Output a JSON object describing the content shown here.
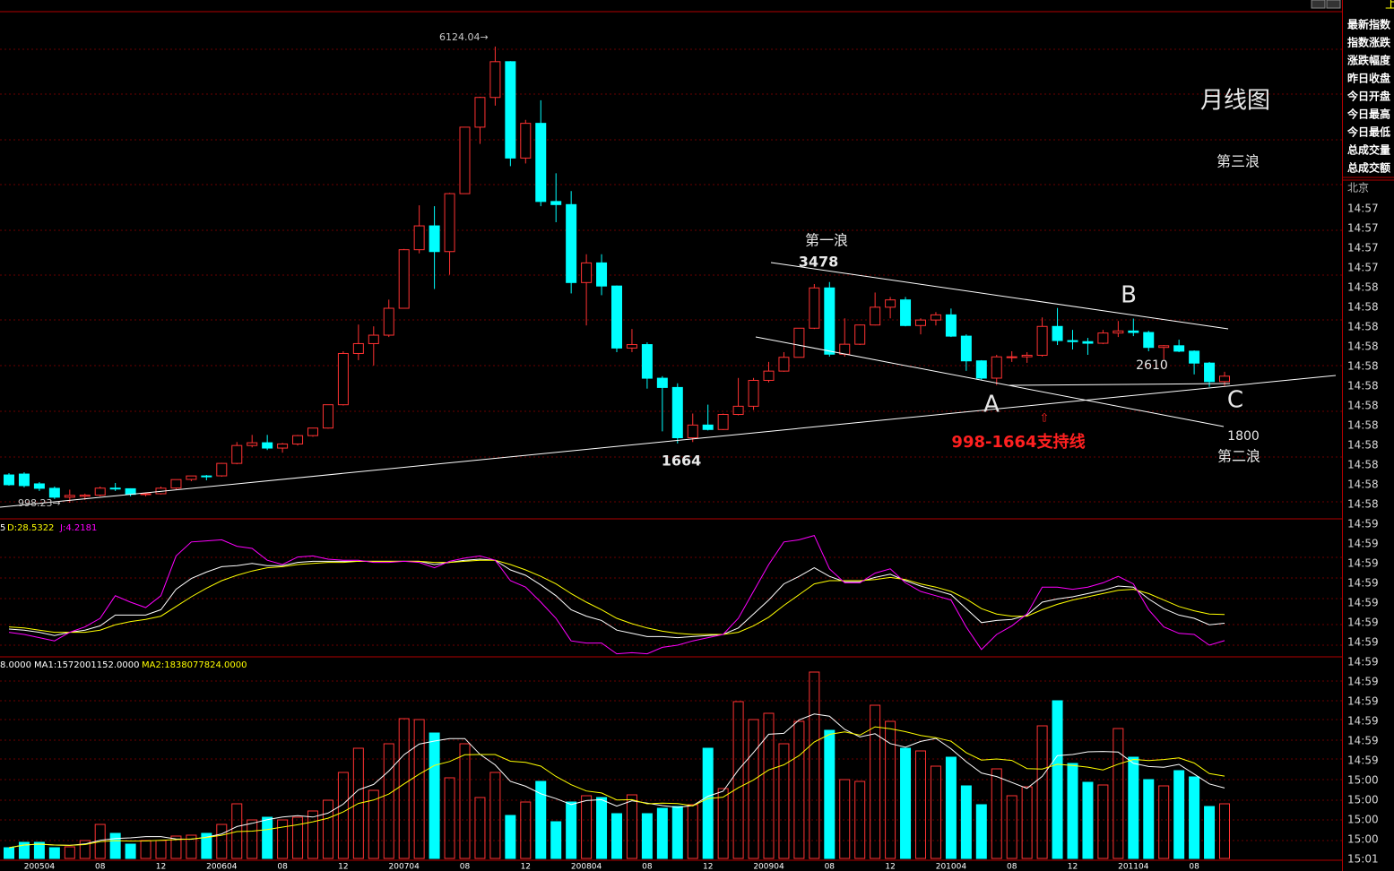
{
  "sidebar": {
    "corner_label": "上",
    "quote_labels": [
      "最新指数",
      "指数涨跌",
      "涨跌幅度",
      "昨日收盘",
      "今日开盘",
      "今日最高",
      "今日最低",
      "总成交量",
      "总成交额"
    ],
    "city": "北京",
    "times": [
      "14:57",
      "14:57",
      "14:57",
      "14:57",
      "14:58",
      "14:58",
      "14:58",
      "14:58",
      "14:58",
      "14:58",
      "14:58",
      "14:58",
      "14:58",
      "14:58",
      "14:58",
      "14:58",
      "14:59",
      "14:59",
      "14:59",
      "14:59",
      "14:59",
      "14:59",
      "14:59",
      "14:59",
      "14:59",
      "14:59",
      "14:59",
      "14:59",
      "14:59",
      "15:00",
      "15:00",
      "15:00",
      "15:00",
      "15:01"
    ]
  },
  "chart_data": [
    {
      "type": "candlestick",
      "title": "月线图",
      "up_color": "#ff3232",
      "down_color": "#00ffff",
      "ylim": [
        827,
        6506
      ],
      "open": [
        1310,
        1320,
        1210,
        1160,
        1060,
        1070,
        1083,
        1162,
        1155,
        1092,
        1099,
        1163,
        1260,
        1299,
        1300,
        1440,
        1641,
        1672,
        1612,
        1658,
        1752,
        1837,
        2099,
        2675,
        2786,
        2881,
        3183,
        3841,
        4109,
        3820,
        4471,
        5218,
        5552,
        5954,
        4871,
        5261,
        4383,
        4348,
        3472,
        3693,
        3433,
        2736,
        2775,
        2397,
        2293,
        1728,
        1871,
        1821,
        1990,
        2082,
        2373,
        2477,
        2632,
        2959,
        3412,
        2667,
        2779,
        2995,
        3195,
        3277,
        2989,
        3051,
        3109,
        2870,
        2592,
        2398,
        2637,
        2638,
        2655,
        2979,
        2820,
        2808,
        2790,
        2905,
        2928,
        2911,
        2743,
        2762,
        2701,
        2567,
        2359
      ],
      "high": [
        1330,
        1340,
        1230,
        1180,
        1145,
        1100,
        1180,
        1220,
        1160,
        1110,
        1180,
        1260,
        1300,
        1310,
        1445,
        1680,
        1760,
        1760,
        1670,
        1760,
        1840,
        2100,
        2700,
        3000,
        2980,
        3280,
        3850,
        4340,
        4330,
        4480,
        5220,
        5560,
        6124.04,
        5960,
        5300,
        5520,
        4700,
        4500,
        3790,
        3790,
        3440,
        2950,
        2800,
        2420,
        2340,
        2000,
        2100,
        2000,
        2400,
        2400,
        2580,
        2690,
        2960,
        3455,
        3478,
        3070,
        3000,
        3360,
        3310,
        3310,
        3070,
        3140,
        3180,
        2890,
        2600,
        2660,
        2700,
        2690,
        3080,
        3186,
        2940,
        2850,
        2940,
        3040,
        3067,
        2930,
        2770,
        2830,
        2710,
        2580,
        2470
      ],
      "low": [
        1190,
        1170,
        1130,
        1040,
        998.23,
        1030,
        1070,
        1130,
        1070,
        1070,
        1090,
        1150,
        1240,
        1250,
        1290,
        1430,
        1620,
        1590,
        1560,
        1640,
        1740,
        1830,
        2090,
        2600,
        2540,
        2860,
        3180,
        3800,
        3400,
        3560,
        4470,
        5030,
        5460,
        4780,
        4810,
        4330,
        4150,
        3350,
        2990,
        3330,
        2690,
        2690,
        2280,
        1800,
        1664,
        1680,
        1810,
        1814,
        1980,
        2040,
        2350,
        2470,
        2630,
        2950,
        2640,
        2640,
        2770,
        2990,
        3070,
        2980,
        2890,
        2990,
        2860,
        2480,
        2380,
        2320,
        2580,
        2570,
        2640,
        2770,
        2720,
        2660,
        2780,
        2860,
        2870,
        2700,
        2610,
        2690,
        2440,
        2300,
        2310
      ],
      "close": [
        1200,
        1190,
        1160,
        1060,
        1080,
        1083,
        1162,
        1155,
        1092,
        1099,
        1161,
        1258,
        1299,
        1298,
        1440,
        1641,
        1672,
        1612,
        1658,
        1752,
        1837,
        2099,
        2675,
        2786,
        2881,
        3183,
        3841,
        4109,
        3820,
        4471,
        5218,
        5552,
        5954,
        4871,
        5261,
        4383,
        4348,
        3472,
        3693,
        3433,
        2736,
        2775,
        2397,
        2293,
        1728,
        1871,
        1821,
        1990,
        2082,
        2373,
        2477,
        2632,
        2959,
        3412,
        2667,
        2779,
        2995,
        3195,
        3277,
        2989,
        3051,
        3109,
        2870,
        2592,
        2398,
        2637,
        2638,
        2655,
        2979,
        2820,
        2808,
        2790,
        2905,
        2928,
        2911,
        2743,
        2762,
        2701,
        2567,
        2359,
        2420
      ],
      "annotations": [
        "6124.04→",
        "998.23→",
        "1664",
        "第一浪",
        "3478",
        "B",
        "2610",
        "A",
        "C",
        "⇧",
        "998-1664支持线",
        "1800",
        "第二浪",
        "第三浪"
      ]
    },
    {
      "type": "line",
      "ylim": [
        -10,
        110
      ],
      "series": [
        {
          "name": "5",
          "color": "#ffffff",
          "values": [
            15,
            14,
            12,
            9,
            12,
            14,
            18,
            28,
            28,
            28,
            33,
            52,
            62,
            68,
            73,
            74,
            76,
            74,
            74,
            77,
            78,
            78,
            78,
            78,
            78,
            78,
            78,
            78,
            75,
            77,
            79,
            80,
            79,
            70,
            65,
            56,
            46,
            33,
            27,
            23,
            14,
            11,
            8,
            8,
            7,
            8,
            9,
            10,
            16,
            29,
            42,
            57,
            64,
            72,
            64,
            59,
            59,
            63,
            66,
            60,
            55,
            51,
            47,
            34,
            21,
            23,
            24,
            28,
            40,
            43,
            45,
            48,
            51,
            55,
            54,
            43,
            34,
            28,
            25,
            19,
            20.43
          ]
        },
        {
          "name": "D:28.5322",
          "color": "#ffff00",
          "values": [
            17,
            16,
            14,
            12,
            12,
            12,
            14,
            19,
            22,
            24,
            27,
            36,
            45,
            53,
            60,
            65,
            69,
            72,
            73,
            75,
            76,
            77,
            77,
            78,
            78,
            78,
            78,
            78,
            77,
            77,
            78,
            79,
            79,
            75,
            70,
            64,
            57,
            48,
            40,
            33,
            25,
            20,
            16,
            13,
            11,
            10,
            10,
            10,
            12,
            18,
            26,
            37,
            47,
            57,
            60,
            60,
            60,
            61,
            63,
            61,
            57,
            54,
            50,
            43,
            34,
            29,
            27,
            27,
            33,
            38,
            42,
            45,
            48,
            51,
            52,
            48,
            42,
            36,
            32,
            29,
            28.5322
          ]
        },
        {
          "name": "J:4.2181",
          "color": "#ff00ff",
          "values": [
            12,
            10,
            7,
            4,
            12,
            17,
            25,
            46,
            40,
            35,
            46,
            83,
            96,
            97,
            98,
            92,
            90,
            79,
            75,
            82,
            83,
            80,
            79,
            79,
            77,
            77,
            78,
            77,
            72,
            78,
            81,
            83,
            79,
            60,
            54,
            40,
            25,
            4,
            2,
            2,
            -8,
            -7,
            -8,
            -2,
            0,
            4,
            7,
            10,
            25,
            50,
            75,
            96,
            98,
            102,
            71,
            58,
            58,
            67,
            71,
            58,
            50,
            46,
            42,
            17,
            -4,
            10,
            18,
            29,
            54,
            54,
            52,
            54,
            58,
            64,
            57,
            33,
            17,
            11,
            10,
            0,
            4.2181
          ]
        }
      ]
    },
    {
      "type": "volume",
      "ylim": [
        0,
        4500000000.0
      ],
      "categories": [
        null,
        null,
        "200504",
        null,
        null,
        null,
        "08",
        null,
        null,
        null,
        "12",
        null,
        null,
        null,
        "200604",
        null,
        null,
        null,
        "08",
        null,
        null,
        null,
        "12",
        null,
        null,
        null,
        "200704",
        null,
        null,
        null,
        "08",
        null,
        null,
        null,
        "12",
        null,
        null,
        null,
        "200804",
        null,
        null,
        null,
        "08",
        null,
        null,
        null,
        "12",
        null,
        null,
        null,
        "200904",
        null,
        null,
        null,
        "08",
        null,
        null,
        null,
        "12",
        null,
        null,
        null,
        "201004",
        null,
        null,
        null,
        "08",
        null,
        null,
        null,
        "12",
        null,
        null,
        null,
        "201104",
        null,
        null,
        null,
        "08",
        null,
        null
      ],
      "series": [
        {
          "name": "8.0000",
          "color": "#ffffff",
          "values": [
            240000000.0,
            360000000.0,
            360000000.0,
            240000000.0,
            260000000.0,
            400000000.0,
            760000000.0,
            560000000.0,
            320000000.0,
            400000000.0,
            400000000.0,
            500000000.0,
            520000000.0,
            560000000.0,
            760000000.0,
            1220000000.0,
            860000000.0,
            920000000.0,
            860000000.0,
            920000000.0,
            1060000000.0,
            1300000000.0,
            1920000000.0,
            2460000000.0,
            1520000000.0,
            2560000000.0,
            3120000000.0,
            3100000000.0,
            2800000000.0,
            1800000000.0,
            2560000000.0,
            1360000000.0,
            1920000000.0,
            960000000.0,
            1260000000.0,
            1720000000.0,
            820000000.0,
            1260000000.0,
            1400000000.0,
            1360000000.0,
            1000000000.0,
            1420000000.0,
            1000000000.0,
            1120000000.0,
            1160000000.0,
            1200000000.0,
            2460000000.0,
            1560000000.0,
            3500000000.0,
            3100000000.0,
            3240000000.0,
            2560000000.0,
            3060000000.0,
            4160000000.0,
            2860000000.0,
            1760000000.0,
            1720000000.0,
            3420000000.0,
            3060000000.0,
            2460000000.0,
            2400000000.0,
            2060000000.0,
            2260000000.0,
            1620000000.0,
            1200000000.0,
            2000000000.0,
            1400000000.0,
            1600000000.0,
            2960000000.0,
            3520000000.0,
            2120000000.0,
            1700000000.0,
            1640000000.0,
            2900000000.0,
            2260000000.0,
            1760000000.0,
            1620000000.0,
            1960000000.0,
            1820000000.0,
            1160000000.0,
            1220000000.0
          ]
        },
        {
          "name": "MA1:1572001152.0000",
          "color": "#ffffff",
          "values": [
            240000000.0,
            300000000.0,
            320000000.0,
            300000000.0,
            292000000.0,
            324000000.0,
            404000000.0,
            444000000.0,
            460000000.0,
            488000000.0,
            488000000.0,
            436000000.0,
            428000000.0,
            476000000.0,
            548000000.0,
            712000000.0,
            784000000.0,
            864000000.0,
            924000000.0,
            956000000.0,
            924000000.0,
            1012000000.0,
            1212000000.0,
            1532000000.0,
            1652000000.0,
            1952000000.0,
            2316000000.0,
            2552000000.0,
            2620000000.0,
            2676000000.0,
            2676000000.0,
            2324000000.0,
            2088000000.0,
            1720000000.0,
            1612000000.0,
            1444000000.0,
            1336000000.0,
            1204000000.0,
            1292000000.0,
            1312000000.0,
            1168000000.0,
            1288000000.0,
            1236000000.0,
            1180000000.0,
            1140000000.0,
            1180000000.0,
            1388000000.0,
            1500000000.0,
            1976000000.0,
            2364000000.0,
            2772000000.0,
            2792000000.0,
            3092000000.0,
            3224000000.0,
            3176000000.0,
            2880000000.0,
            2712000000.0,
            2784000000.0,
            2564000000.0,
            2484000000.0,
            2612000000.0,
            2680000000.0,
            2448000000.0,
            2160000000.0,
            1908000000.0,
            1828000000.0,
            1696000000.0,
            1564000000.0,
            1832000000.0,
            2296000000.0,
            2320000000.0,
            2380000000.0,
            2388000000.0,
            2376000000.0,
            2124000000.0,
            2052000000.0,
            2036000000.0,
            2100000000.0,
            1884000000.0,
            1664000000.0,
            1572001152
          ]
        },
        {
          "name": "MA2:1838077824.0000",
          "color": "#ffff00",
          "values": [
            240000000.0,
            300000000.0,
            320000000.0,
            300000000.0,
            292000000.0,
            310000000.0,
            374000000.0,
            398000000.0,
            388000000.0,
            390000000.0,
            406000000.0,
            420000000.0,
            436000000.0,
            468000000.0,
            518000000.0,
            600000000.0,
            610000000.0,
            646000000.0,
            700000000.0,
            752000000.0,
            818000000.0,
            898000000.0,
            1038000000.0,
            1228000000.0,
            1304000000.0,
            1438000000.0,
            1664000000.0,
            1882000000.0,
            2076000000.0,
            2164000000.0,
            2314000000.0,
            2320000000.0,
            2320000000.0,
            2170000000.0,
            2144000000.0,
            2060000000.0,
            1830000000.0,
            1646000000.0,
            1506000000.0,
            1462000000.0,
            1306000000.0,
            1312000000.0,
            1220000000.0,
            1236000000.0,
            1226000000.0,
            1174000000.0,
            1338000000.0,
            1368000000.0,
            1578000000.0,
            1752000000.0,
            1976000000.0,
            2090000000.0,
            2296000000.0,
            2600000000.0,
            2770000000.0,
            2826000000.0,
            2752000000.0,
            2938000000.0,
            2894000000.0,
            2830000000.0,
            2746000000.0,
            2696000000.0,
            2616000000.0,
            2362000000.0,
            2196000000.0,
            2220000000.0,
            2188000000.0,
            2006000000.0,
            1996000000.0,
            2102000000.0,
            2074000000.0,
            2038000000.0,
            1976000000.0,
            2104000000.0,
            2210000000.0,
            2186000000.0,
            2208000000.0,
            2244000000.0,
            2130000000.0,
            1894000000.0,
            1838077824
          ]
        }
      ]
    }
  ]
}
